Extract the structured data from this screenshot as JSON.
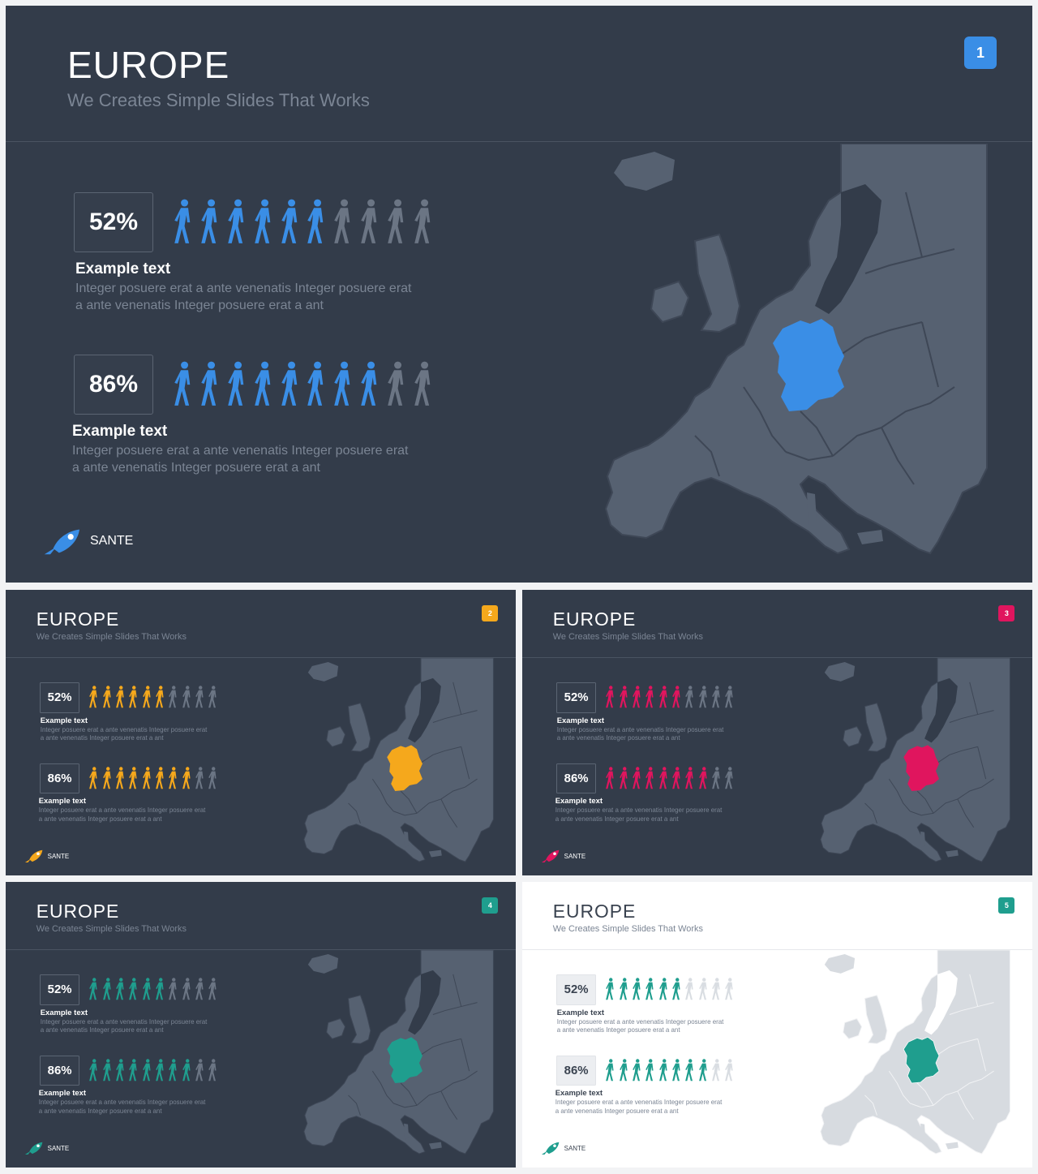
{
  "slides": [
    {
      "number": "1",
      "title": "EUROPE",
      "subtitle": "We Creates Simple Slides That Works",
      "accent": "#3a8ee6",
      "theme": "dark",
      "stats": [
        {
          "percent": "52%",
          "value": 52,
          "filled": 6,
          "total": 10,
          "title": "Example text",
          "body": "Integer posuere erat a ante venenatis Integer posuere erat a ante venenatis Integer posuere erat a ant"
        },
        {
          "percent": "86%",
          "value": 86,
          "filled": 8,
          "total": 10,
          "title": "Example text",
          "body": "Integer posuere erat a ante venenatis Integer posuere erat a ante venenatis Integer posuere erat a ant"
        }
      ],
      "logo": "SANTE",
      "highlight": "Germany"
    },
    {
      "number": "2",
      "title": "EUROPE",
      "subtitle": "We Creates Simple Slides That Works",
      "accent": "#f5a81c",
      "theme": "dark",
      "stats": [
        {
          "percent": "52%",
          "value": 52,
          "filled": 6,
          "total": 10,
          "title": "Example text",
          "body": "Integer posuere erat a ante venenatis Integer posuere erat a ante venenatis Integer posuere erat a ant"
        },
        {
          "percent": "86%",
          "value": 86,
          "filled": 8,
          "total": 10,
          "title": "Example text",
          "body": "Integer posuere erat a ante venenatis Integer posuere erat a ante venenatis Integer posuere erat a ant"
        }
      ],
      "logo": "SANTE",
      "highlight": "Germany"
    },
    {
      "number": "3",
      "title": "EUROPE",
      "subtitle": "We Creates Simple Slides That Works",
      "accent": "#e0155e",
      "theme": "dark",
      "stats": [
        {
          "percent": "52%",
          "value": 52,
          "filled": 6,
          "total": 10,
          "title": "Example text",
          "body": "Integer posuere erat a ante venenatis Integer posuere erat a ante venenatis Integer posuere erat a ant"
        },
        {
          "percent": "86%",
          "value": 86,
          "filled": 8,
          "total": 10,
          "title": "Example text",
          "body": "Integer posuere erat a ante venenatis Integer posuere erat a ante venenatis Integer posuere erat a ant"
        }
      ],
      "logo": "SANTE",
      "highlight": "Germany"
    },
    {
      "number": "4",
      "title": "EUROPE",
      "subtitle": "We Creates Simple Slides That Works",
      "accent": "#1f9e8e",
      "theme": "dark",
      "stats": [
        {
          "percent": "52%",
          "value": 52,
          "filled": 6,
          "total": 10,
          "title": "Example text",
          "body": "Integer posuere erat a ante venenatis Integer posuere erat a ante venenatis Integer posuere erat a ant"
        },
        {
          "percent": "86%",
          "value": 86,
          "filled": 8,
          "total": 10,
          "title": "Example text",
          "body": "Integer posuere erat a ante venenatis Integer posuere erat a ante venenatis Integer posuere erat a ant"
        }
      ],
      "logo": "SANTE",
      "highlight": "Germany"
    },
    {
      "number": "5",
      "title": "EUROPE",
      "subtitle": "We Creates Simple Slides That Works",
      "accent": "#1f9e8e",
      "theme": "light",
      "stats": [
        {
          "percent": "52%",
          "value": 52,
          "filled": 6,
          "total": 10,
          "title": "Example text",
          "body": "Integer posuere erat a ante venenatis Integer posuere erat a ante venenatis Integer posuere erat a ant"
        },
        {
          "percent": "86%",
          "value": 86,
          "filled": 8,
          "total": 10,
          "title": "Example text",
          "body": "Integer posuere erat a ante venenatis Integer posuere erat a ante venenatis Integer posuere erat a ant"
        }
      ],
      "logo": "SANTE",
      "highlight": "Germany"
    }
  ]
}
